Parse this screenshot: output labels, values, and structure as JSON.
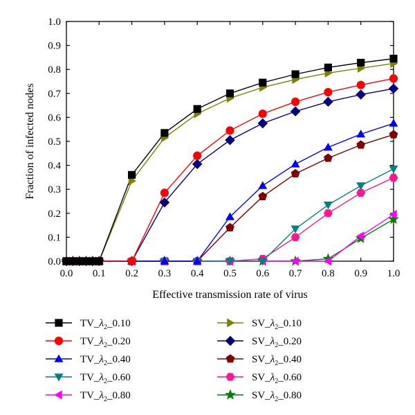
{
  "chart_data": {
    "type": "line",
    "title": "",
    "xlabel": "Effective transmission rate of virus",
    "ylabel": "Fraction of infected nodes",
    "xlim": [
      0.0,
      1.0
    ],
    "ylim": [
      0.0,
      1.0
    ],
    "xticks": [
      "0.0",
      "0.1",
      "0.2",
      "0.3",
      "0.4",
      "0.5",
      "0.6",
      "0.7",
      "0.8",
      "0.9",
      "1.0"
    ],
    "yticks": [
      "0.0",
      "0.1",
      "0.2",
      "0.3",
      "0.4",
      "0.5",
      "0.6",
      "0.7",
      "0.8",
      "0.9",
      "1.0"
    ],
    "grid": false,
    "legend_position": "bottom",
    "x": [
      0.0,
      0.02,
      0.04,
      0.06,
      0.08,
      0.1,
      0.2,
      0.3,
      0.4,
      0.5,
      0.6,
      0.7,
      0.8,
      0.9,
      1.0
    ],
    "series": [
      {
        "name_prefix": "TV_",
        "name_symbol": "λ",
        "name_sub": "2",
        "name_suffix": "_0.10",
        "color": "#000000",
        "marker": "square",
        "values": [
          0,
          0,
          0,
          0,
          0,
          0,
          0.36,
          0.535,
          0.635,
          0.7,
          0.745,
          0.78,
          0.808,
          0.828,
          0.845
        ]
      },
      {
        "name_prefix": "TV_",
        "name_symbol": "λ",
        "name_sub": "2",
        "name_suffix": "_0.20",
        "color": "#ff0000",
        "marker": "circle",
        "values": [
          0,
          0,
          0,
          0,
          0,
          0,
          0,
          0.285,
          0.44,
          0.545,
          0.615,
          0.665,
          0.705,
          0.735,
          0.762
        ]
      },
      {
        "name_prefix": "TV_",
        "name_symbol": "λ",
        "name_sub": "2",
        "name_suffix": "_0.40",
        "color": "#0000ff",
        "marker": "triangle-up",
        "values": [
          0,
          0,
          0,
          0,
          0,
          0,
          0,
          0,
          0,
          0.185,
          0.315,
          0.405,
          0.475,
          0.53,
          0.575
        ]
      },
      {
        "name_prefix": "TV_",
        "name_symbol": "λ",
        "name_sub": "2",
        "name_suffix": "_0.60",
        "color": "#008080",
        "marker": "triangle-down",
        "values": [
          0,
          0,
          0,
          0,
          0,
          0,
          0,
          0,
          0,
          0,
          0,
          0.135,
          0.235,
          0.315,
          0.385
        ]
      },
      {
        "name_prefix": "TV_",
        "name_symbol": "λ",
        "name_sub": "2",
        "name_suffix": "_0.80",
        "color": "#ff00ff",
        "marker": "triangle-left",
        "values": [
          0,
          0,
          0,
          0,
          0,
          0,
          0,
          0,
          0,
          0,
          0,
          0,
          0,
          0.105,
          0.195
        ]
      },
      {
        "name_prefix": "SV_",
        "name_symbol": "λ",
        "name_sub": "2",
        "name_suffix": "_0.10",
        "color": "#808000",
        "marker": "triangle-right",
        "values": [
          0,
          0,
          0,
          0,
          0,
          0,
          0.335,
          0.515,
          0.615,
          0.68,
          0.725,
          0.758,
          0.785,
          0.805,
          0.825
        ]
      },
      {
        "name_prefix": "SV_",
        "name_symbol": "λ",
        "name_sub": "2",
        "name_suffix": "_0.20",
        "color": "#000080",
        "marker": "diamond",
        "values": [
          0,
          0,
          0,
          0,
          0,
          0,
          0,
          0.245,
          0.405,
          0.505,
          0.575,
          0.625,
          0.665,
          0.695,
          0.72
        ]
      },
      {
        "name_prefix": "SV_",
        "name_symbol": "λ",
        "name_sub": "2",
        "name_suffix": "_0.40",
        "color": "#800000",
        "marker": "pentagon",
        "values": [
          0,
          0,
          0,
          0,
          0,
          0,
          0,
          0,
          0,
          0.14,
          0.27,
          0.365,
          0.43,
          0.485,
          0.528
        ]
      },
      {
        "name_prefix": "SV_",
        "name_symbol": "λ",
        "name_sub": "2",
        "name_suffix": "_0.60",
        "color": "#ff1493",
        "marker": "hexagon",
        "values": [
          0,
          0,
          0,
          0,
          0,
          0,
          0,
          0,
          0,
          0,
          0.01,
          0.1,
          0.2,
          0.285,
          0.348
        ]
      },
      {
        "name_prefix": "SV_",
        "name_symbol": "λ",
        "name_sub": "2",
        "name_suffix": "_0.80",
        "color": "#008000",
        "marker": "star",
        "values": [
          0,
          0,
          0,
          0,
          0,
          0,
          0,
          0,
          0,
          0,
          0,
          0,
          0.01,
          0.095,
          0.175
        ]
      }
    ]
  }
}
